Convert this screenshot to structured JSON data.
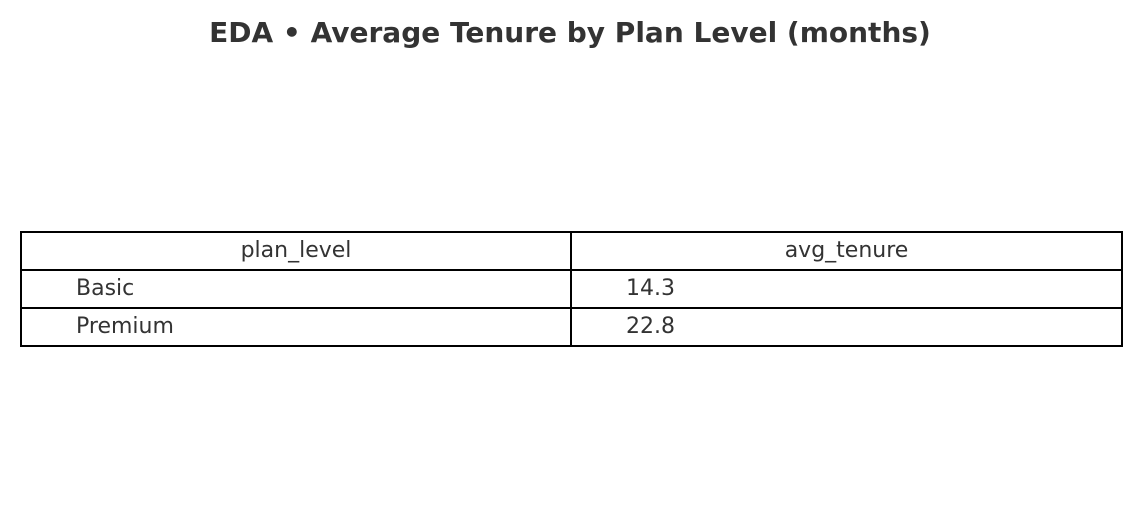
{
  "chart_data": {
    "type": "table",
    "title": "EDA • Average Tenure by Plan Level (months)",
    "columns": [
      "plan_level",
      "avg_tenure"
    ],
    "rows": [
      [
        "Basic",
        "14.3"
      ],
      [
        "Premium",
        "22.8"
      ]
    ]
  },
  "colors": {
    "text": "#333333",
    "border": "#000000",
    "background": "#ffffff"
  }
}
